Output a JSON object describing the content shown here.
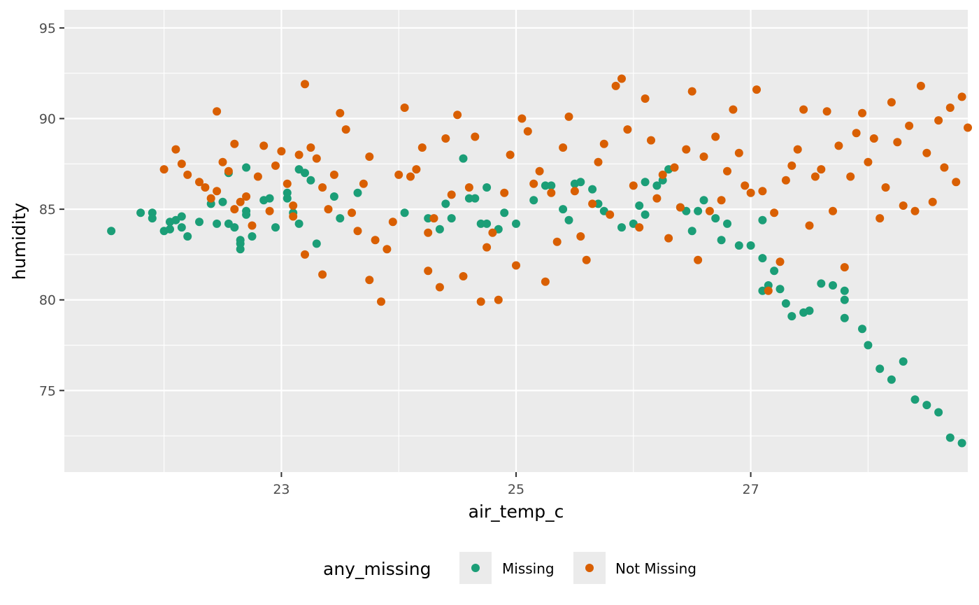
{
  "chart_data": {
    "type": "scatter",
    "xlabel": "air_temp_c",
    "ylabel": "humidity",
    "xlim": [
      21.15,
      28.85
    ],
    "ylim": [
      70.5,
      96.0
    ],
    "x_ticks": [
      23,
      25,
      27
    ],
    "y_ticks": [
      75,
      80,
      85,
      90,
      95
    ],
    "grid": true,
    "legend": {
      "title": "any_missing",
      "position": "bottom"
    },
    "series": [
      {
        "name": "Missing",
        "color": "#1b9e77",
        "points": [
          [
            21.55,
            83.8
          ],
          [
            21.8,
            84.8
          ],
          [
            21.9,
            84.8
          ],
          [
            21.9,
            84.5
          ],
          [
            22.0,
            83.8
          ],
          [
            22.05,
            84.3
          ],
          [
            22.1,
            84.4
          ],
          [
            22.05,
            83.9
          ],
          [
            22.15,
            84.6
          ],
          [
            22.15,
            84.0
          ],
          [
            22.2,
            83.5
          ],
          [
            22.3,
            84.3
          ],
          [
            22.45,
            84.2
          ],
          [
            22.4,
            85.3
          ],
          [
            22.5,
            85.4
          ],
          [
            22.55,
            84.2
          ],
          [
            22.55,
            87.0
          ],
          [
            22.6,
            84.0
          ],
          [
            22.65,
            83.3
          ],
          [
            22.65,
            83.1
          ],
          [
            22.65,
            82.8
          ],
          [
            22.7,
            84.9
          ],
          [
            22.7,
            84.7
          ],
          [
            22.7,
            87.3
          ],
          [
            22.75,
            83.5
          ],
          [
            22.85,
            85.5
          ],
          [
            22.9,
            85.6
          ],
          [
            22.95,
            84.0
          ],
          [
            23.05,
            85.6
          ],
          [
            23.05,
            85.9
          ],
          [
            23.1,
            84.8
          ],
          [
            23.15,
            84.2
          ],
          [
            23.15,
            87.2
          ],
          [
            23.2,
            87.0
          ],
          [
            23.25,
            86.6
          ],
          [
            23.3,
            83.1
          ],
          [
            23.45,
            85.7
          ],
          [
            23.5,
            84.5
          ],
          [
            23.65,
            85.9
          ],
          [
            24.05,
            84.8
          ],
          [
            24.25,
            84.5
          ],
          [
            24.35,
            83.9
          ],
          [
            24.4,
            85.3
          ],
          [
            24.45,
            84.5
          ],
          [
            24.55,
            87.8
          ],
          [
            24.6,
            85.6
          ],
          [
            24.65,
            85.6
          ],
          [
            24.7,
            84.2
          ],
          [
            24.75,
            86.2
          ],
          [
            24.75,
            84.2
          ],
          [
            24.85,
            83.9
          ],
          [
            24.9,
            84.8
          ],
          [
            25.0,
            84.2
          ],
          [
            25.15,
            85.5
          ],
          [
            25.25,
            86.3
          ],
          [
            25.3,
            86.3
          ],
          [
            25.4,
            85.0
          ],
          [
            25.45,
            84.4
          ],
          [
            25.5,
            86.4
          ],
          [
            25.55,
            86.5
          ],
          [
            25.65,
            86.1
          ],
          [
            25.7,
            85.3
          ],
          [
            25.75,
            84.9
          ],
          [
            25.9,
            84.0
          ],
          [
            26.0,
            84.2
          ],
          [
            26.05,
            85.2
          ],
          [
            26.1,
            84.7
          ],
          [
            26.1,
            86.5
          ],
          [
            26.2,
            86.3
          ],
          [
            26.25,
            86.6
          ],
          [
            26.3,
            87.2
          ],
          [
            26.4,
            85.1
          ],
          [
            26.45,
            84.9
          ],
          [
            26.5,
            83.8
          ],
          [
            26.55,
            84.9
          ],
          [
            26.6,
            85.5
          ],
          [
            26.7,
            84.5
          ],
          [
            26.75,
            83.3
          ],
          [
            26.8,
            84.2
          ],
          [
            26.9,
            83.0
          ],
          [
            27.0,
            83.0
          ],
          [
            27.1,
            84.4
          ],
          [
            27.1,
            82.3
          ],
          [
            27.1,
            80.5
          ],
          [
            27.15,
            80.8
          ],
          [
            27.2,
            81.6
          ],
          [
            27.25,
            80.6
          ],
          [
            27.3,
            79.8
          ],
          [
            27.35,
            79.1
          ],
          [
            27.45,
            79.3
          ],
          [
            27.5,
            79.4
          ],
          [
            27.6,
            80.9
          ],
          [
            27.7,
            80.8
          ],
          [
            27.8,
            80.5
          ],
          [
            27.8,
            80.0
          ],
          [
            27.8,
            79.0
          ],
          [
            27.95,
            78.4
          ],
          [
            28.0,
            77.5
          ],
          [
            28.1,
            76.2
          ],
          [
            28.2,
            75.6
          ],
          [
            28.3,
            76.6
          ],
          [
            28.4,
            74.5
          ],
          [
            28.5,
            74.2
          ],
          [
            28.6,
            73.8
          ],
          [
            28.7,
            72.4
          ],
          [
            28.8,
            72.1
          ]
        ]
      },
      {
        "name": "Not Missing",
        "color": "#d95f02",
        "points": [
          [
            22.0,
            87.2
          ],
          [
            22.1,
            88.3
          ],
          [
            22.15,
            87.5
          ],
          [
            22.2,
            86.9
          ],
          [
            22.3,
            86.5
          ],
          [
            22.35,
            86.2
          ],
          [
            22.4,
            85.6
          ],
          [
            22.45,
            86.0
          ],
          [
            22.45,
            90.4
          ],
          [
            22.5,
            87.6
          ],
          [
            22.55,
            87.1
          ],
          [
            22.6,
            88.6
          ],
          [
            22.6,
            85.0
          ],
          [
            22.65,
            85.4
          ],
          [
            22.7,
            85.7
          ],
          [
            22.75,
            84.1
          ],
          [
            22.8,
            86.8
          ],
          [
            22.85,
            88.5
          ],
          [
            22.9,
            84.9
          ],
          [
            22.95,
            87.4
          ],
          [
            23.0,
            88.2
          ],
          [
            23.05,
            86.4
          ],
          [
            23.1,
            85.2
          ],
          [
            23.1,
            84.6
          ],
          [
            23.15,
            88.0
          ],
          [
            23.2,
            82.5
          ],
          [
            23.2,
            91.9
          ],
          [
            23.25,
            88.4
          ],
          [
            23.3,
            87.8
          ],
          [
            23.35,
            86.2
          ],
          [
            23.35,
            81.4
          ],
          [
            23.4,
            85.0
          ],
          [
            23.45,
            86.9
          ],
          [
            23.5,
            90.3
          ],
          [
            23.55,
            89.4
          ],
          [
            23.6,
            84.8
          ],
          [
            23.65,
            83.8
          ],
          [
            23.7,
            86.4
          ],
          [
            23.75,
            87.9
          ],
          [
            23.75,
            81.1
          ],
          [
            23.8,
            83.3
          ],
          [
            23.85,
            79.9
          ],
          [
            23.9,
            82.8
          ],
          [
            23.95,
            84.3
          ],
          [
            24.0,
            86.9
          ],
          [
            24.05,
            90.6
          ],
          [
            24.1,
            86.8
          ],
          [
            24.15,
            87.2
          ],
          [
            24.2,
            88.4
          ],
          [
            24.25,
            83.7
          ],
          [
            24.25,
            81.6
          ],
          [
            24.3,
            84.5
          ],
          [
            24.35,
            80.7
          ],
          [
            24.4,
            88.9
          ],
          [
            24.45,
            85.8
          ],
          [
            24.5,
            90.2
          ],
          [
            24.55,
            81.3
          ],
          [
            24.6,
            86.2
          ],
          [
            24.65,
            89.0
          ],
          [
            24.7,
            79.9
          ],
          [
            24.75,
            82.9
          ],
          [
            24.8,
            83.7
          ],
          [
            24.85,
            80.0
          ],
          [
            24.9,
            85.9
          ],
          [
            24.95,
            88.0
          ],
          [
            25.0,
            81.9
          ],
          [
            25.05,
            90.0
          ],
          [
            25.1,
            89.3
          ],
          [
            25.15,
            86.4
          ],
          [
            25.2,
            87.1
          ],
          [
            25.25,
            81.0
          ],
          [
            25.3,
            85.9
          ],
          [
            25.35,
            83.2
          ],
          [
            25.4,
            88.4
          ],
          [
            25.45,
            90.1
          ],
          [
            25.5,
            86.0
          ],
          [
            25.55,
            83.5
          ],
          [
            25.6,
            82.2
          ],
          [
            25.65,
            85.3
          ],
          [
            25.7,
            87.6
          ],
          [
            25.75,
            88.6
          ],
          [
            25.8,
            84.7
          ],
          [
            25.85,
            91.8
          ],
          [
            25.9,
            92.2
          ],
          [
            25.95,
            89.4
          ],
          [
            26.0,
            86.3
          ],
          [
            26.05,
            84.0
          ],
          [
            26.1,
            91.1
          ],
          [
            26.15,
            88.8
          ],
          [
            26.2,
            85.6
          ],
          [
            26.25,
            86.9
          ],
          [
            26.3,
            83.4
          ],
          [
            26.35,
            87.3
          ],
          [
            26.4,
            85.1
          ],
          [
            26.45,
            88.3
          ],
          [
            26.5,
            91.5
          ],
          [
            26.55,
            82.2
          ],
          [
            26.6,
            87.9
          ],
          [
            26.65,
            84.9
          ],
          [
            26.7,
            89.0
          ],
          [
            26.75,
            85.5
          ],
          [
            26.8,
            87.1
          ],
          [
            26.85,
            90.5
          ],
          [
            26.9,
            88.1
          ],
          [
            26.95,
            86.3
          ],
          [
            27.0,
            85.9
          ],
          [
            27.05,
            91.6
          ],
          [
            27.1,
            86.0
          ],
          [
            27.15,
            80.5
          ],
          [
            27.2,
            84.8
          ],
          [
            27.25,
            82.1
          ],
          [
            27.3,
            86.6
          ],
          [
            27.35,
            87.4
          ],
          [
            27.4,
            88.3
          ],
          [
            27.45,
            90.5
          ],
          [
            27.5,
            84.1
          ],
          [
            27.55,
            86.8
          ],
          [
            27.6,
            87.2
          ],
          [
            27.65,
            90.4
          ],
          [
            27.7,
            84.9
          ],
          [
            27.75,
            88.5
          ],
          [
            27.8,
            81.8
          ],
          [
            27.85,
            86.8
          ],
          [
            27.9,
            89.2
          ],
          [
            27.95,
            90.3
          ],
          [
            28.0,
            87.6
          ],
          [
            28.05,
            88.9
          ],
          [
            28.1,
            84.5
          ],
          [
            28.15,
            86.2
          ],
          [
            28.2,
            90.9
          ],
          [
            28.25,
            88.7
          ],
          [
            28.3,
            85.2
          ],
          [
            28.35,
            89.6
          ],
          [
            28.4,
            84.9
          ],
          [
            28.45,
            91.8
          ],
          [
            28.5,
            88.1
          ],
          [
            28.55,
            85.4
          ],
          [
            28.6,
            89.9
          ],
          [
            28.65,
            87.3
          ],
          [
            28.7,
            90.6
          ],
          [
            28.75,
            86.5
          ],
          [
            28.8,
            91.2
          ],
          [
            28.85,
            89.5
          ]
        ]
      }
    ]
  }
}
